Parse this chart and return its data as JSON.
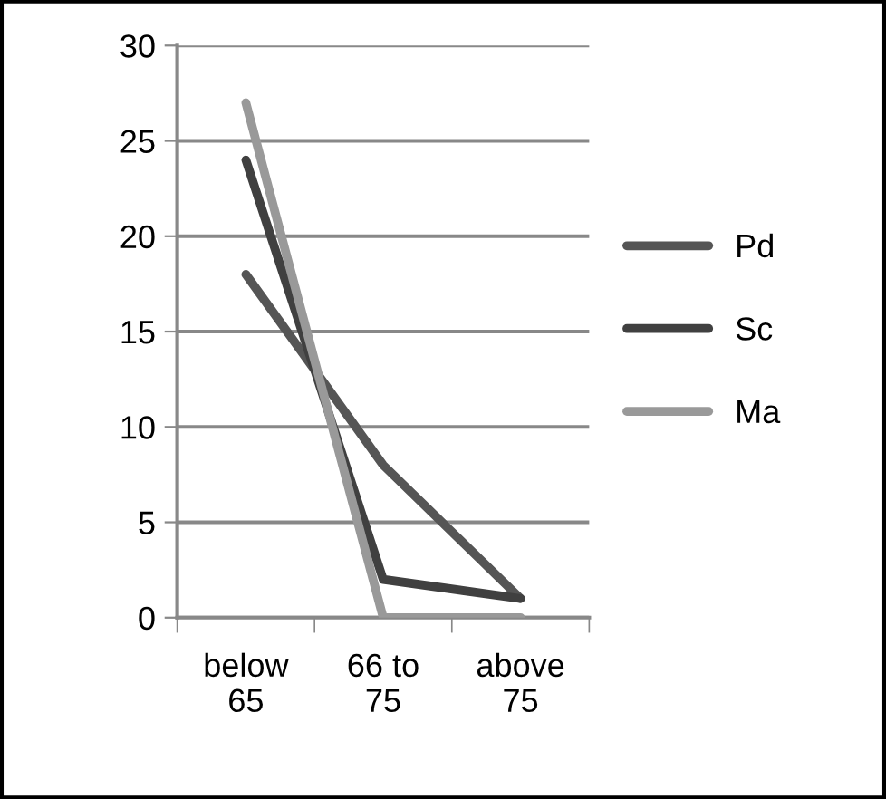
{
  "chart_data": {
    "type": "line",
    "categories": [
      "below 65",
      "66 to 75",
      "above 75"
    ],
    "series": [
      {
        "name": "Pd",
        "color": "#555555",
        "values": [
          18,
          8,
          1
        ]
      },
      {
        "name": "Sc",
        "color": "#404040",
        "values": [
          24,
          2,
          1
        ]
      },
      {
        "name": "Ma",
        "color": "#999999",
        "values": [
          27,
          0,
          0
        ]
      }
    ],
    "ylim": [
      0,
      30
    ],
    "yticks": [
      0,
      5,
      10,
      15,
      20,
      25,
      30
    ],
    "grid": "y",
    "legend": "right",
    "marker": "none",
    "line_style": "solid"
  }
}
